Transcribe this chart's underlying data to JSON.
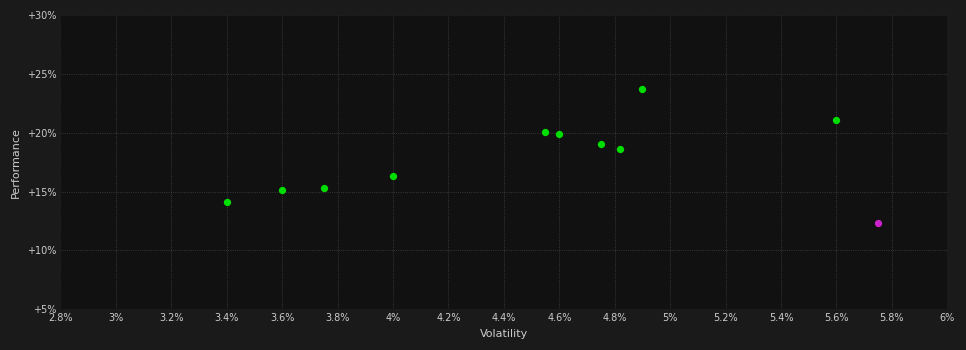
{
  "xlabel": "Volatility",
  "ylabel": "Performance",
  "background_color": "#1a1a1a",
  "plot_bg_color": "#111111",
  "grid_color": "#444444",
  "text_color": "#cccccc",
  "xlim": [
    0.028,
    0.06
  ],
  "ylim": [
    0.05,
    0.3
  ],
  "xticks": [
    0.028,
    0.03,
    0.032,
    0.034,
    0.036,
    0.038,
    0.04,
    0.042,
    0.044,
    0.046,
    0.048,
    0.05,
    0.052,
    0.054,
    0.056,
    0.058,
    0.06
  ],
  "yticks": [
    0.05,
    0.1,
    0.15,
    0.2,
    0.25,
    0.3
  ],
  "xtick_labels": [
    "2.8%",
    "3%",
    "3.2%",
    "3.4%",
    "3.6%",
    "3.8%",
    "4%",
    "4.2%",
    "4.4%",
    "4.6%",
    "4.8%",
    "5%",
    "5.2%",
    "5.4%",
    "5.6%",
    "5.8%",
    "6%"
  ],
  "ytick_labels": [
    "+5%",
    "+10%",
    "+15%",
    "+20%",
    "+25%",
    "+30%"
  ],
  "green_points": [
    [
      0.034,
      0.141
    ],
    [
      0.036,
      0.151
    ],
    [
      0.0375,
      0.153
    ],
    [
      0.04,
      0.163
    ],
    [
      0.0455,
      0.201
    ],
    [
      0.046,
      0.199
    ],
    [
      0.0475,
      0.19
    ],
    [
      0.0482,
      0.186
    ],
    [
      0.049,
      0.237
    ],
    [
      0.056,
      0.211
    ]
  ],
  "magenta_points": [
    [
      0.0575,
      0.123
    ]
  ],
  "point_size": 18,
  "green_color": "#00dd00",
  "magenta_color": "#cc22cc",
  "figsize": [
    9.66,
    3.5
  ],
  "dpi": 100
}
